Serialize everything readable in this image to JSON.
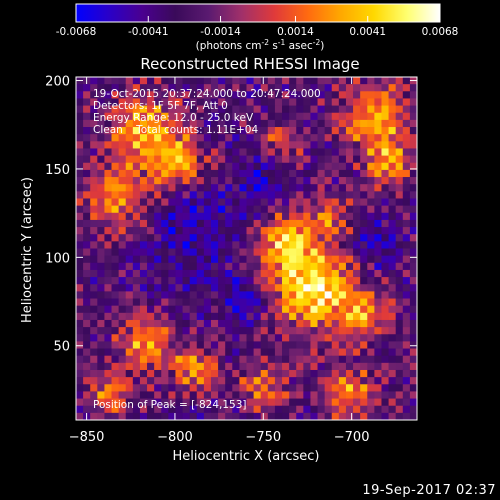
{
  "chart_data": {
    "type": "heatmap",
    "title": "Reconstructed RHESSI Image",
    "xlabel": "Heliocentric X (arcsec)",
    "ylabel": "Heliocentric Y (arcsec)",
    "xlim": [
      -856,
      -663
    ],
    "ylim": [
      8,
      202
    ],
    "xticks": [
      -850,
      -800,
      -750,
      -700
    ],
    "yticks": [
      50,
      100,
      150,
      200
    ],
    "colorbar": {
      "range": [
        -0.0068,
        0.0068
      ],
      "ticks": [
        "-0.0068",
        "-0.0041",
        "-0.0014",
        "0.0014",
        "0.0041",
        "0.0068"
      ],
      "label_main": "(photons cm",
      "label_exp1": "-2",
      "label_s": " s",
      "label_exp2": "-1",
      "label_asec": " asec",
      "label_exp3": "-2",
      "label_end": ")"
    },
    "annotations": [
      "19-Oct-2015 20:37:24.000 to 20:47:24.000",
      "Detectors: 1F 5F 7F, Att 0",
      "Energy Range: 12.0 - 25.0 keV",
      "Clean    Total counts: 1.11E+04"
    ],
    "peak_label": "Position of Peak = [-824,153]",
    "peak": [
      -824,
      153
    ],
    "image_grid": {
      "cols": 48,
      "rows": 48
    },
    "colormap": [
      "#0000ff",
      "#2a00c8",
      "#4a0090",
      "#3a0a5a",
      "#5a1a70",
      "#a0306a",
      "#e03a3a",
      "#ff6a10",
      "#ffa800",
      "#ffd800",
      "#ffff70",
      "#ffffff"
    ]
  },
  "timestamp": "19-Sep-2017 02:37"
}
